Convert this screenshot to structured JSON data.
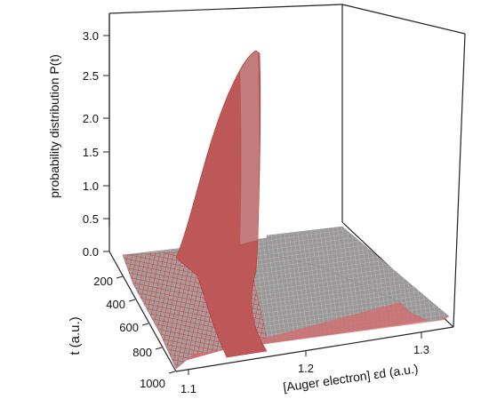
{
  "chart_data": {
    "type": "surface",
    "title": "",
    "zlabel": "probability distribution P(t)",
    "ylabel": "t (a.u.)",
    "xlabel": "[Auger electron] εd (a.u.)",
    "x_ticks": [
      "1.1",
      "1.2",
      "1.3"
    ],
    "y_ticks": [
      "200",
      "400",
      "600",
      "800",
      "1000"
    ],
    "z_ticks": [
      "0.0",
      "0.5",
      "1.0",
      "1.5",
      "2.0",
      "2.5",
      "3.0"
    ],
    "xlim": [
      1.1,
      1.34
    ],
    "ylim": [
      0,
      1000
    ],
    "zlim": [
      0,
      3.0
    ],
    "peak": {
      "x": 1.155,
      "y": 0,
      "z": 2.75
    },
    "surface_colors": {
      "mesh_red": "#d23c3c",
      "mesh_gray": "#8d8d8d",
      "front_face": "#d46a6a"
    }
  }
}
